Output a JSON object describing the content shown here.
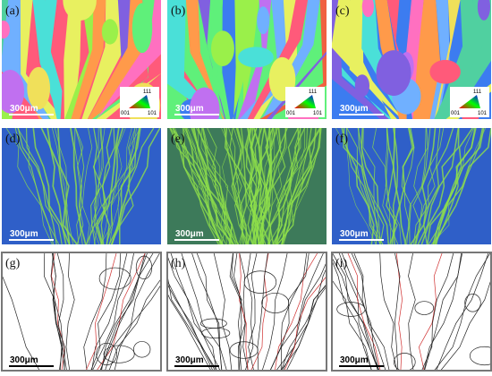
{
  "panels": [
    {
      "label": "(a)",
      "scale_bar": "300μm",
      "legend": {
        "top": "111",
        "left": "001",
        "right": "101"
      }
    },
    {
      "label": "(b)",
      "scale_bar": "300μm",
      "legend": {
        "top": "111",
        "left": "001",
        "right": "101"
      }
    },
    {
      "label": "(c)",
      "scale_bar": "300μm",
      "legend": {
        "top": "111",
        "left": "001",
        "right": "101"
      }
    },
    {
      "label": "(d)",
      "scale_bar": "300μm"
    },
    {
      "label": "(e)",
      "scale_bar": "300μm"
    },
    {
      "label": "(f)",
      "scale_bar": "300μm"
    },
    {
      "label": "(g)",
      "scale_bar": "300μm"
    },
    {
      "label": "(h)",
      "scale_bar": "300μm"
    },
    {
      "label": "(i)",
      "scale_bar": "300μm"
    }
  ]
}
